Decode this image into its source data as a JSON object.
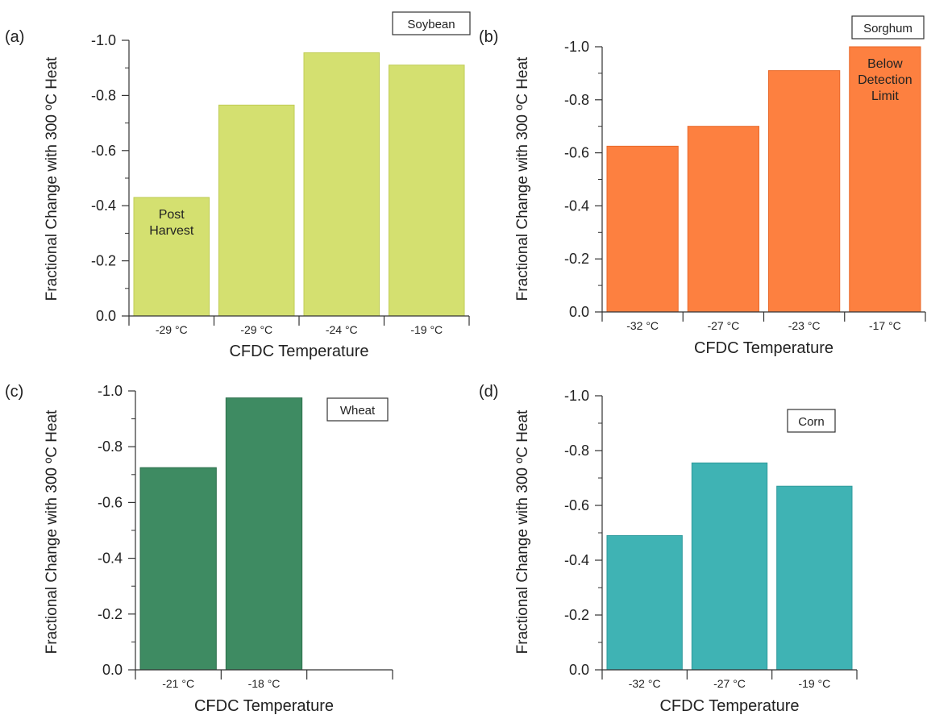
{
  "chart_data": [
    {
      "type": "bar",
      "panel_label": "(a)",
      "crop_label": "Soybean",
      "categories": [
        "-29 °C",
        "-29 °C",
        "-24 °C",
        "-19 °C"
      ],
      "values": [
        -0.43,
        -0.765,
        -0.955,
        -0.91
      ],
      "color": "#d4e070",
      "edge_color": "#bfcc55",
      "annotations": [
        {
          "bar_index": 0,
          "text": [
            "Post",
            "Harvest"
          ]
        }
      ],
      "xlabel": "CFDC Temperature",
      "ylabel": "Fractional Change with 300 ºC Heat",
      "ylim": [
        0.0,
        -1.0
      ],
      "yticks": [
        "0.0",
        "-0.2",
        "-0.4",
        "-0.6",
        "-0.8",
        "-1.0"
      ],
      "axis_inverted": true
    },
    {
      "type": "bar",
      "panel_label": "(b)",
      "crop_label": "Sorghum",
      "categories": [
        "-32 °C",
        "-27 °C",
        "-23 °C",
        "-17 °C"
      ],
      "values": [
        -0.625,
        -0.7,
        -0.91,
        -1.0
      ],
      "color": "#fd8040",
      "edge_color": "#e8692a",
      "annotations": [
        {
          "bar_index": 3,
          "text": [
            "Below",
            "Detection",
            "Limit"
          ]
        }
      ],
      "xlabel": "CFDC Temperature",
      "ylabel": "Fractional Change with 300 ºC Heat",
      "ylim": [
        0.0,
        -1.0
      ],
      "yticks": [
        "0.0",
        "-0.2",
        "-0.4",
        "-0.6",
        "-0.8",
        "-1.0"
      ],
      "axis_inverted": true
    },
    {
      "type": "bar",
      "panel_label": "(c)",
      "crop_label": "Wheat",
      "categories": [
        "-21 °C",
        "-18 °C",
        ""
      ],
      "values": [
        -0.725,
        -0.975,
        null
      ],
      "color": "#3e8b62",
      "edge_color": "#2d6f4c",
      "annotations": [],
      "xlabel": "CFDC Temperature",
      "ylabel": "Fractional Change with 300 ºC Heat",
      "ylim": [
        0.0,
        -1.0
      ],
      "yticks": [
        "0.0",
        "-0.2",
        "-0.4",
        "-0.6",
        "-0.8",
        "-1.0"
      ],
      "axis_inverted": true
    },
    {
      "type": "bar",
      "panel_label": "(d)",
      "crop_label": "Corn",
      "categories": [
        "-32 °C",
        "-27 °C",
        "-19 °C"
      ],
      "values": [
        -0.49,
        -0.755,
        -0.67
      ],
      "color": "#3fb3b4",
      "edge_color": "#2e9a9b",
      "annotations": [],
      "xlabel": "CFDC Temperature",
      "ylabel": "Fractional Change with 300 ºC Heat",
      "ylim": [
        0.0,
        -1.0
      ],
      "yticks": [
        "0.0",
        "-0.2",
        "-0.4",
        "-0.6",
        "-0.8",
        "-1.0"
      ],
      "axis_inverted": true
    }
  ]
}
